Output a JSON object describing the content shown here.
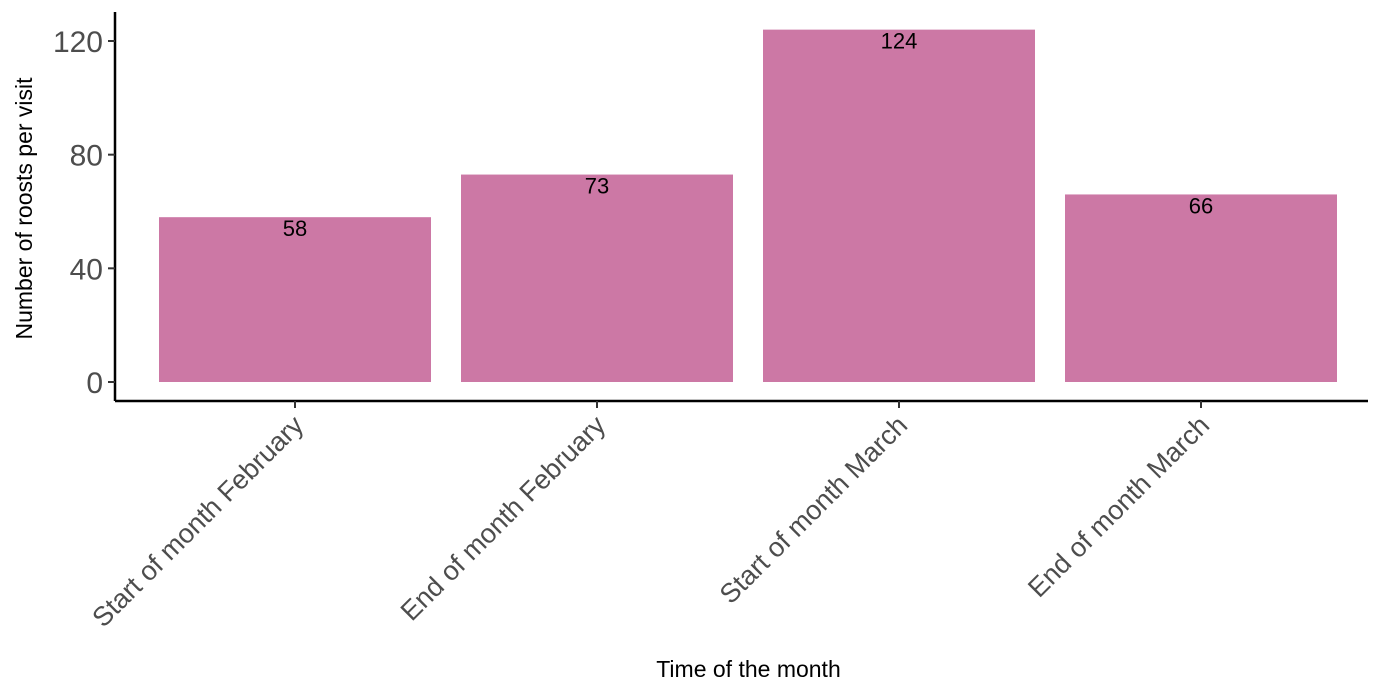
{
  "chart_data": {
    "type": "bar",
    "categories": [
      "Start of month February",
      "End of month February",
      "Start of month March",
      "End of month March"
    ],
    "values": [
      58,
      73,
      124,
      66
    ],
    "data_labels": [
      "58",
      "73",
      "124",
      "66"
    ],
    "xlabel": "Time of the month",
    "ylabel": "Number of roosts per visit",
    "ylim": [
      0,
      130
    ],
    "yticks": [
      0,
      40,
      80,
      120
    ],
    "ytick_labels": [
      "0",
      "40",
      "80",
      "120"
    ],
    "grid": false,
    "legend": "none",
    "colors": {
      "bar": "#cc78a5",
      "axis": "#000000",
      "tick_text": "#4d4d4d"
    }
  }
}
